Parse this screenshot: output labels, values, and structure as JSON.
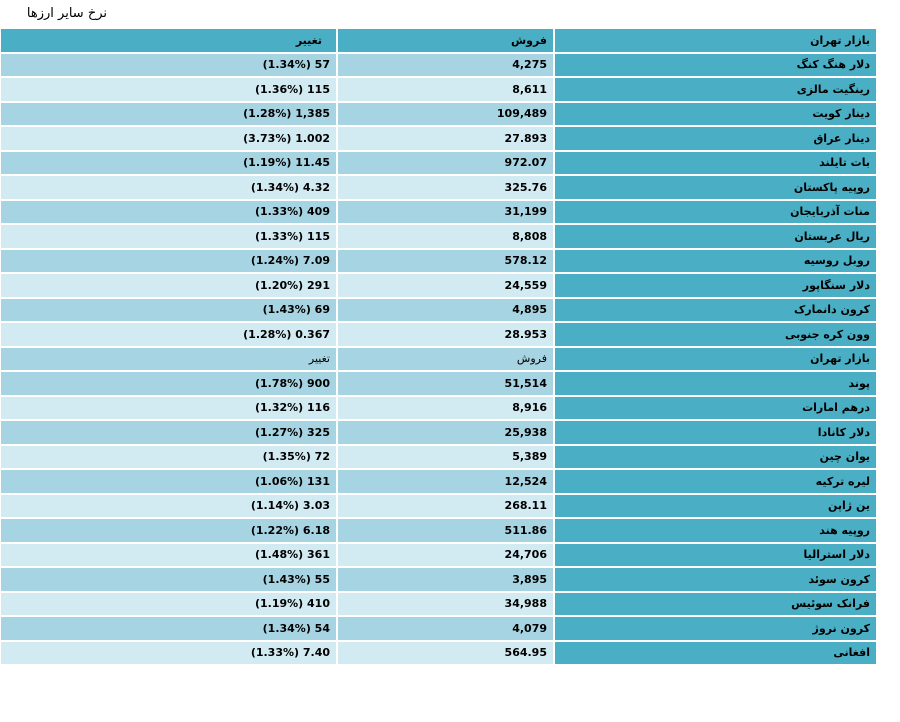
{
  "title": "نرخ سایر ارزها",
  "header": {
    "market": "بازار تهران",
    "sell": "فروش",
    "change": "تغییر"
  },
  "group1": [
    {
      "name": "دلار هنگ کنگ",
      "sell": "4,275",
      "change": "(1.34%) 57"
    },
    {
      "name": "رینگیت مالزی",
      "sell": "8,611",
      "change": "(1.36%) 115"
    },
    {
      "name": "دینار کویت",
      "sell": "109,489",
      "change": "(1.28%) 1,385"
    },
    {
      "name": "دینار عراق",
      "sell": "27.893",
      "change": "(3.73%) 1.002"
    },
    {
      "name": "بات تایلند",
      "sell": "972.07",
      "change": "(1.19%) 11.45"
    },
    {
      "name": "روپیه پاکستان",
      "sell": "325.76",
      "change": "(1.34%) 4.32"
    },
    {
      "name": "منات آذربایجان",
      "sell": "31,199",
      "change": "(1.33%) 409"
    },
    {
      "name": "ریال عربستان",
      "sell": "8,808",
      "change": "(1.33%) 115"
    },
    {
      "name": "روبل روسیه",
      "sell": "578.12",
      "change": "(1.24%) 7.09"
    },
    {
      "name": "دلار سنگاپور",
      "sell": "24,559",
      "change": "(1.20%) 291"
    },
    {
      "name": "کرون دانمارک",
      "sell": "4,895",
      "change": "(1.43%) 69"
    },
    {
      "name": "وون کره جنوبی",
      "sell": "28.953",
      "change": "(1.28%) 0.367"
    }
  ],
  "subheader": {
    "market": "بازار تهران",
    "sell": "فروش",
    "change": "تغییر"
  },
  "group2": [
    {
      "name": "پوند",
      "sell": "51,514",
      "change": "(1.78%) 900"
    },
    {
      "name": "درهم امارات",
      "sell": "8,916",
      "change": "(1.32%) 116"
    },
    {
      "name": "دلار کانادا",
      "sell": "25,938",
      "change": "(1.27%) 325"
    },
    {
      "name": "یوان چین",
      "sell": "5,389",
      "change": "(1.35%) 72"
    },
    {
      "name": "لیره ترکیه",
      "sell": "12,524",
      "change": "(1.06%) 131"
    },
    {
      "name": "ین ژاپن",
      "sell": "268.11",
      "change": "(1.14%) 3.03"
    },
    {
      "name": "روپیه هند",
      "sell": "511.86",
      "change": "(1.22%) 6.18"
    },
    {
      "name": "دلار استرالیا",
      "sell": "24,706",
      "change": "(1.48%) 361"
    },
    {
      "name": "کرون سوئد",
      "sell": "3,895",
      "change": "(1.43%) 55"
    },
    {
      "name": "فرانک سوئیس",
      "sell": "34,988",
      "change": "(1.19%) 410"
    },
    {
      "name": "کرون نروژ",
      "sell": "4,079",
      "change": "(1.34%) 54"
    },
    {
      "name": "افغانی",
      "sell": "564.95",
      "change": "(1.33%) 7.40"
    }
  ]
}
